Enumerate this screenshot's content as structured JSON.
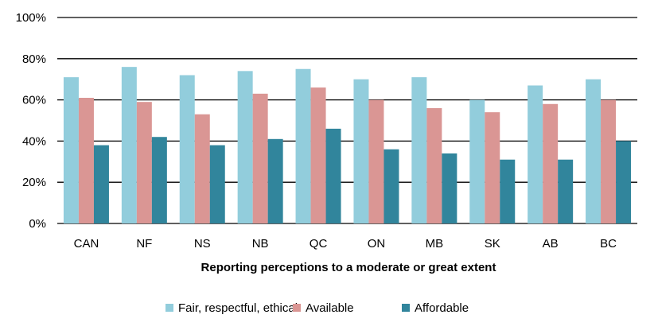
{
  "chart_data": {
    "type": "bar",
    "title": "",
    "xlabel": "Reporting perceptions to a moderate or great extent",
    "ylabel": "",
    "ylim": [
      0,
      100
    ],
    "yticks": [
      "0%",
      "20%",
      "40%",
      "60%",
      "80%",
      "100%"
    ],
    "grid": true,
    "legend_position": "bottom",
    "categories": [
      "CAN",
      "NF",
      "NS",
      "NB",
      "QC",
      "ON",
      "MB",
      "SK",
      "AB",
      "BC"
    ],
    "series": [
      {
        "name": "Fair, respectful, ethical",
        "color": "#92cddc",
        "values": [
          71,
          76,
          72,
          74,
          75,
          70,
          71,
          60,
          67,
          70
        ]
      },
      {
        "name": "Available",
        "color": "#da9694",
        "values": [
          61,
          59,
          53,
          63,
          66,
          60,
          56,
          54,
          58,
          60
        ]
      },
      {
        "name": "Affordable",
        "color": "#31859c",
        "values": [
          38,
          42,
          38,
          41,
          46,
          36,
          34,
          31,
          31,
          40
        ]
      }
    ]
  }
}
